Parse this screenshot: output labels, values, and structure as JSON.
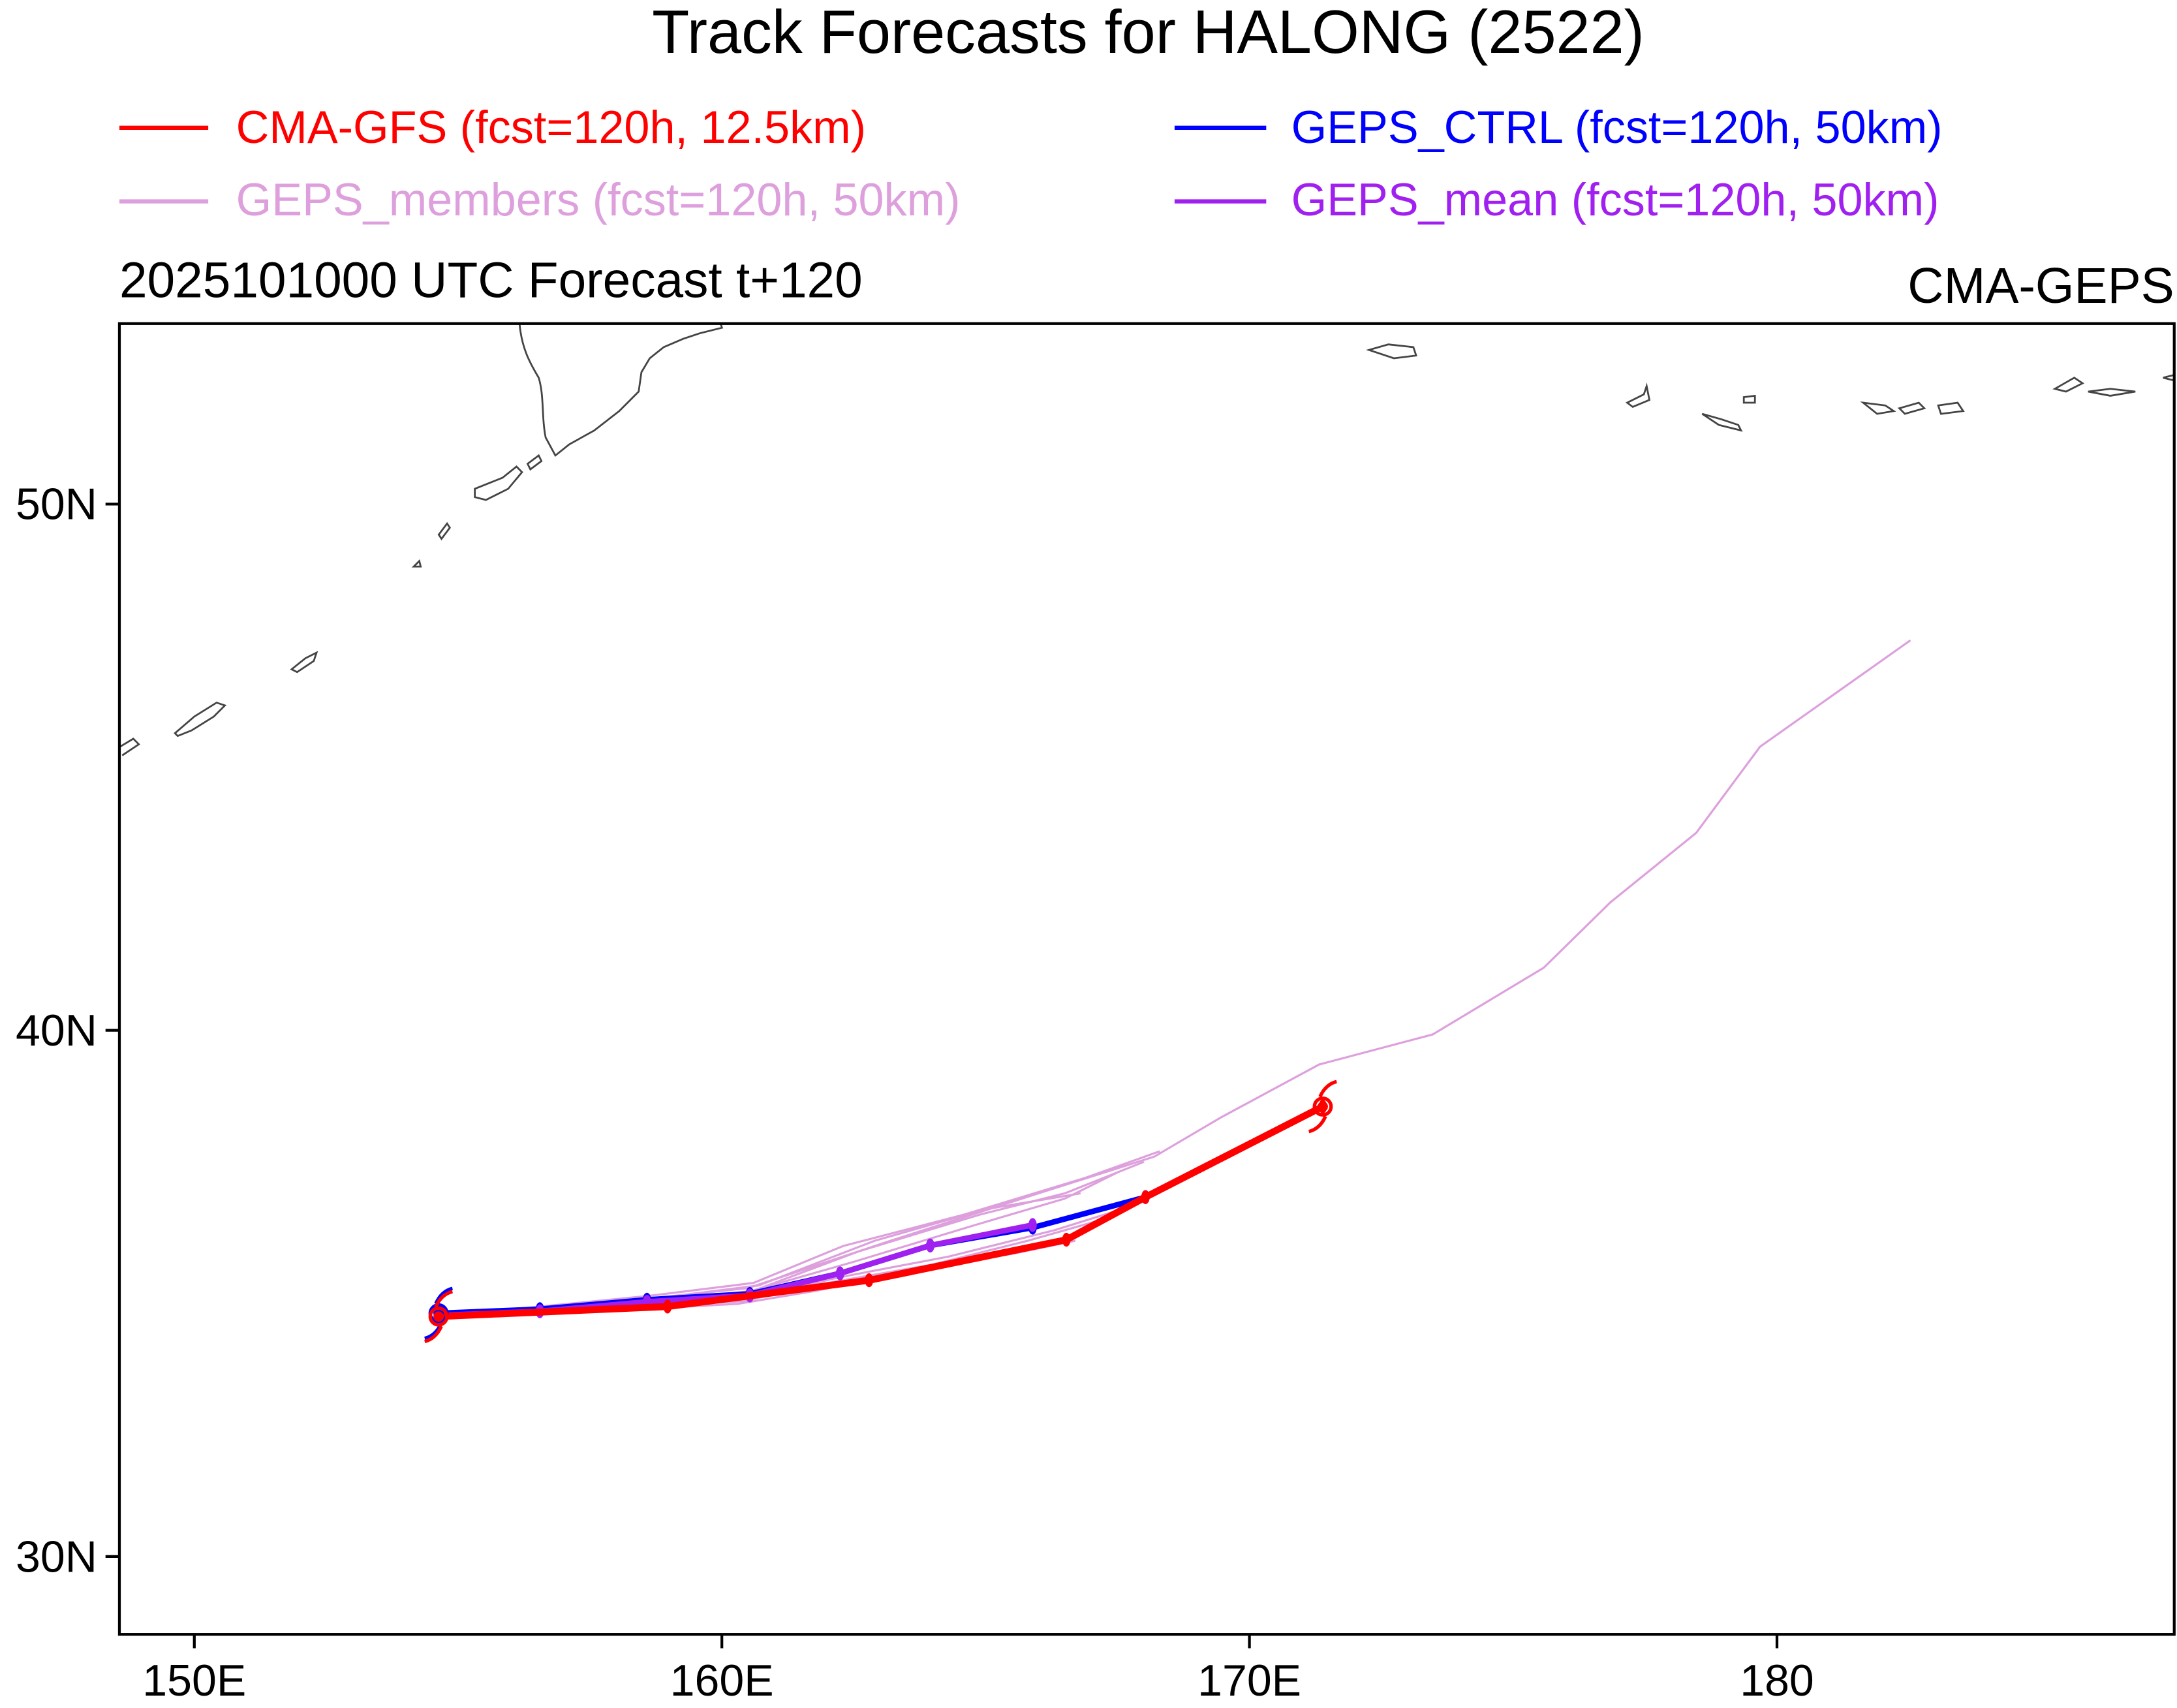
{
  "title": "Track Forecasts for HALONG (2522)",
  "subtitle_left": "2025101000 UTC Forecast t+120",
  "subtitle_right": "CMA-GEPS",
  "legend": [
    {
      "label": "CMA-GFS (fcst=120h, 12.5km)",
      "color": "#ff0000"
    },
    {
      "label": "GEPS_CTRL (fcst=120h, 50km)",
      "color": "#0000ff"
    },
    {
      "label": "GEPS_members (fcst=120h, 50km)",
      "color": "#dda0dd"
    },
    {
      "label": "GEPS_mean (fcst=120h, 50km)",
      "color": "#a020f0"
    }
  ],
  "axes": {
    "lon_range": [
      148.58,
      187.53
    ],
    "lat_range": [
      28.52,
      53.43
    ],
    "x_ticks": [
      {
        "v": 150,
        "label": "150E"
      },
      {
        "v": 160,
        "label": "160E"
      },
      {
        "v": 170,
        "label": "170E"
      },
      {
        "v": 180,
        "label": "180"
      }
    ],
    "y_ticks": [
      {
        "v": 30,
        "label": "30N"
      },
      {
        "v": 40,
        "label": "40N"
      },
      {
        "v": 50,
        "label": "50N"
      }
    ]
  },
  "chart_data": {
    "type": "line",
    "series": [
      {
        "name": "GEPS_members",
        "color": "#dda0dd",
        "width": 1.5,
        "members": [
          [
            [
              154.63,
              34.56
            ],
            [
              158.6,
              34.9
            ],
            [
              160.5,
              35.1
            ],
            [
              163.2,
              36.0
            ],
            [
              166.0,
              36.9
            ],
            [
              168.2,
              37.6
            ],
            [
              169.47,
              38.35
            ],
            [
              171.32,
              39.35
            ],
            [
              173.47,
              39.92
            ],
            [
              175.58,
              41.19
            ],
            [
              176.84,
              42.43
            ],
            [
              178.47,
              43.75
            ],
            [
              179.68,
              45.39
            ],
            [
              182.53,
              47.41
            ]
          ],
          [
            [
              154.63,
              34.56
            ],
            [
              158.6,
              34.95
            ],
            [
              160.6,
              35.2
            ],
            [
              162.3,
              35.9
            ],
            [
              164.6,
              36.5
            ],
            [
              166.9,
              37.2
            ],
            [
              168.3,
              37.7
            ]
          ],
          [
            [
              154.63,
              34.56
            ],
            [
              158.6,
              34.8
            ],
            [
              160.4,
              35.0
            ],
            [
              162.5,
              35.6
            ],
            [
              164.8,
              36.3
            ],
            [
              166.5,
              36.8
            ],
            [
              167.5,
              37.3
            ]
          ],
          [
            [
              154.63,
              34.56
            ],
            [
              158.6,
              34.7
            ],
            [
              160.5,
              34.9
            ],
            [
              162.2,
              35.3
            ],
            [
              164.3,
              35.7
            ],
            [
              166.3,
              36.2
            ],
            [
              167.9,
              36.7
            ]
          ],
          [
            [
              154.63,
              34.56
            ],
            [
              158.5,
              34.75
            ],
            [
              160.4,
              34.85
            ],
            [
              162.0,
              35.2
            ],
            [
              164.0,
              35.55
            ],
            [
              165.8,
              36.0
            ],
            [
              167.2,
              36.4
            ]
          ],
          [
            [
              154.63,
              34.56
            ],
            [
              158.8,
              34.85
            ],
            [
              160.6,
              35.05
            ],
            [
              162.6,
              35.8
            ],
            [
              164.9,
              36.5
            ],
            [
              166.5,
              36.9
            ],
            [
              168.0,
              37.5
            ]
          ],
          [
            [
              154.63,
              34.56
            ],
            [
              158.4,
              34.7
            ],
            [
              160.3,
              34.8
            ],
            [
              161.8,
              35.05
            ],
            [
              163.8,
              35.5
            ],
            [
              165.5,
              35.75
            ],
            [
              166.7,
              36.0
            ]
          ],
          [
            [
              154.63,
              34.56
            ],
            [
              158.7,
              34.9
            ],
            [
              160.7,
              35.15
            ],
            [
              162.9,
              36.0
            ],
            [
              165.0,
              36.6
            ],
            [
              166.8,
              36.9
            ]
          ]
        ]
      },
      {
        "name": "GEPS_CTRL",
        "color": "#0000ff",
        "width": 4,
        "points": [
          [
            154.63,
            34.62
          ],
          [
            156.55,
            34.7
          ],
          [
            158.58,
            34.88
          ],
          [
            160.53,
            34.99
          ],
          [
            162.24,
            35.38
          ],
          [
            163.95,
            35.91
          ],
          [
            165.89,
            36.25
          ],
          [
            168.03,
            36.83
          ]
        ]
      },
      {
        "name": "GEPS_mean",
        "color": "#a020f0",
        "width": 4,
        "points": [
          [
            154.63,
            34.58
          ],
          [
            156.55,
            34.66
          ],
          [
            158.58,
            34.84
          ],
          [
            160.53,
            34.96
          ],
          [
            162.24,
            35.38
          ],
          [
            163.95,
            35.91
          ],
          [
            165.89,
            36.3
          ]
        ]
      },
      {
        "name": "CMA-GFS",
        "color": "#ff0000",
        "width": 5,
        "points": [
          [
            154.63,
            34.56
          ],
          [
            158.97,
            34.75
          ],
          [
            162.79,
            35.25
          ],
          [
            166.53,
            36.02
          ],
          [
            168.03,
            36.83
          ],
          [
            171.39,
            38.55
          ]
        ]
      }
    ]
  }
}
